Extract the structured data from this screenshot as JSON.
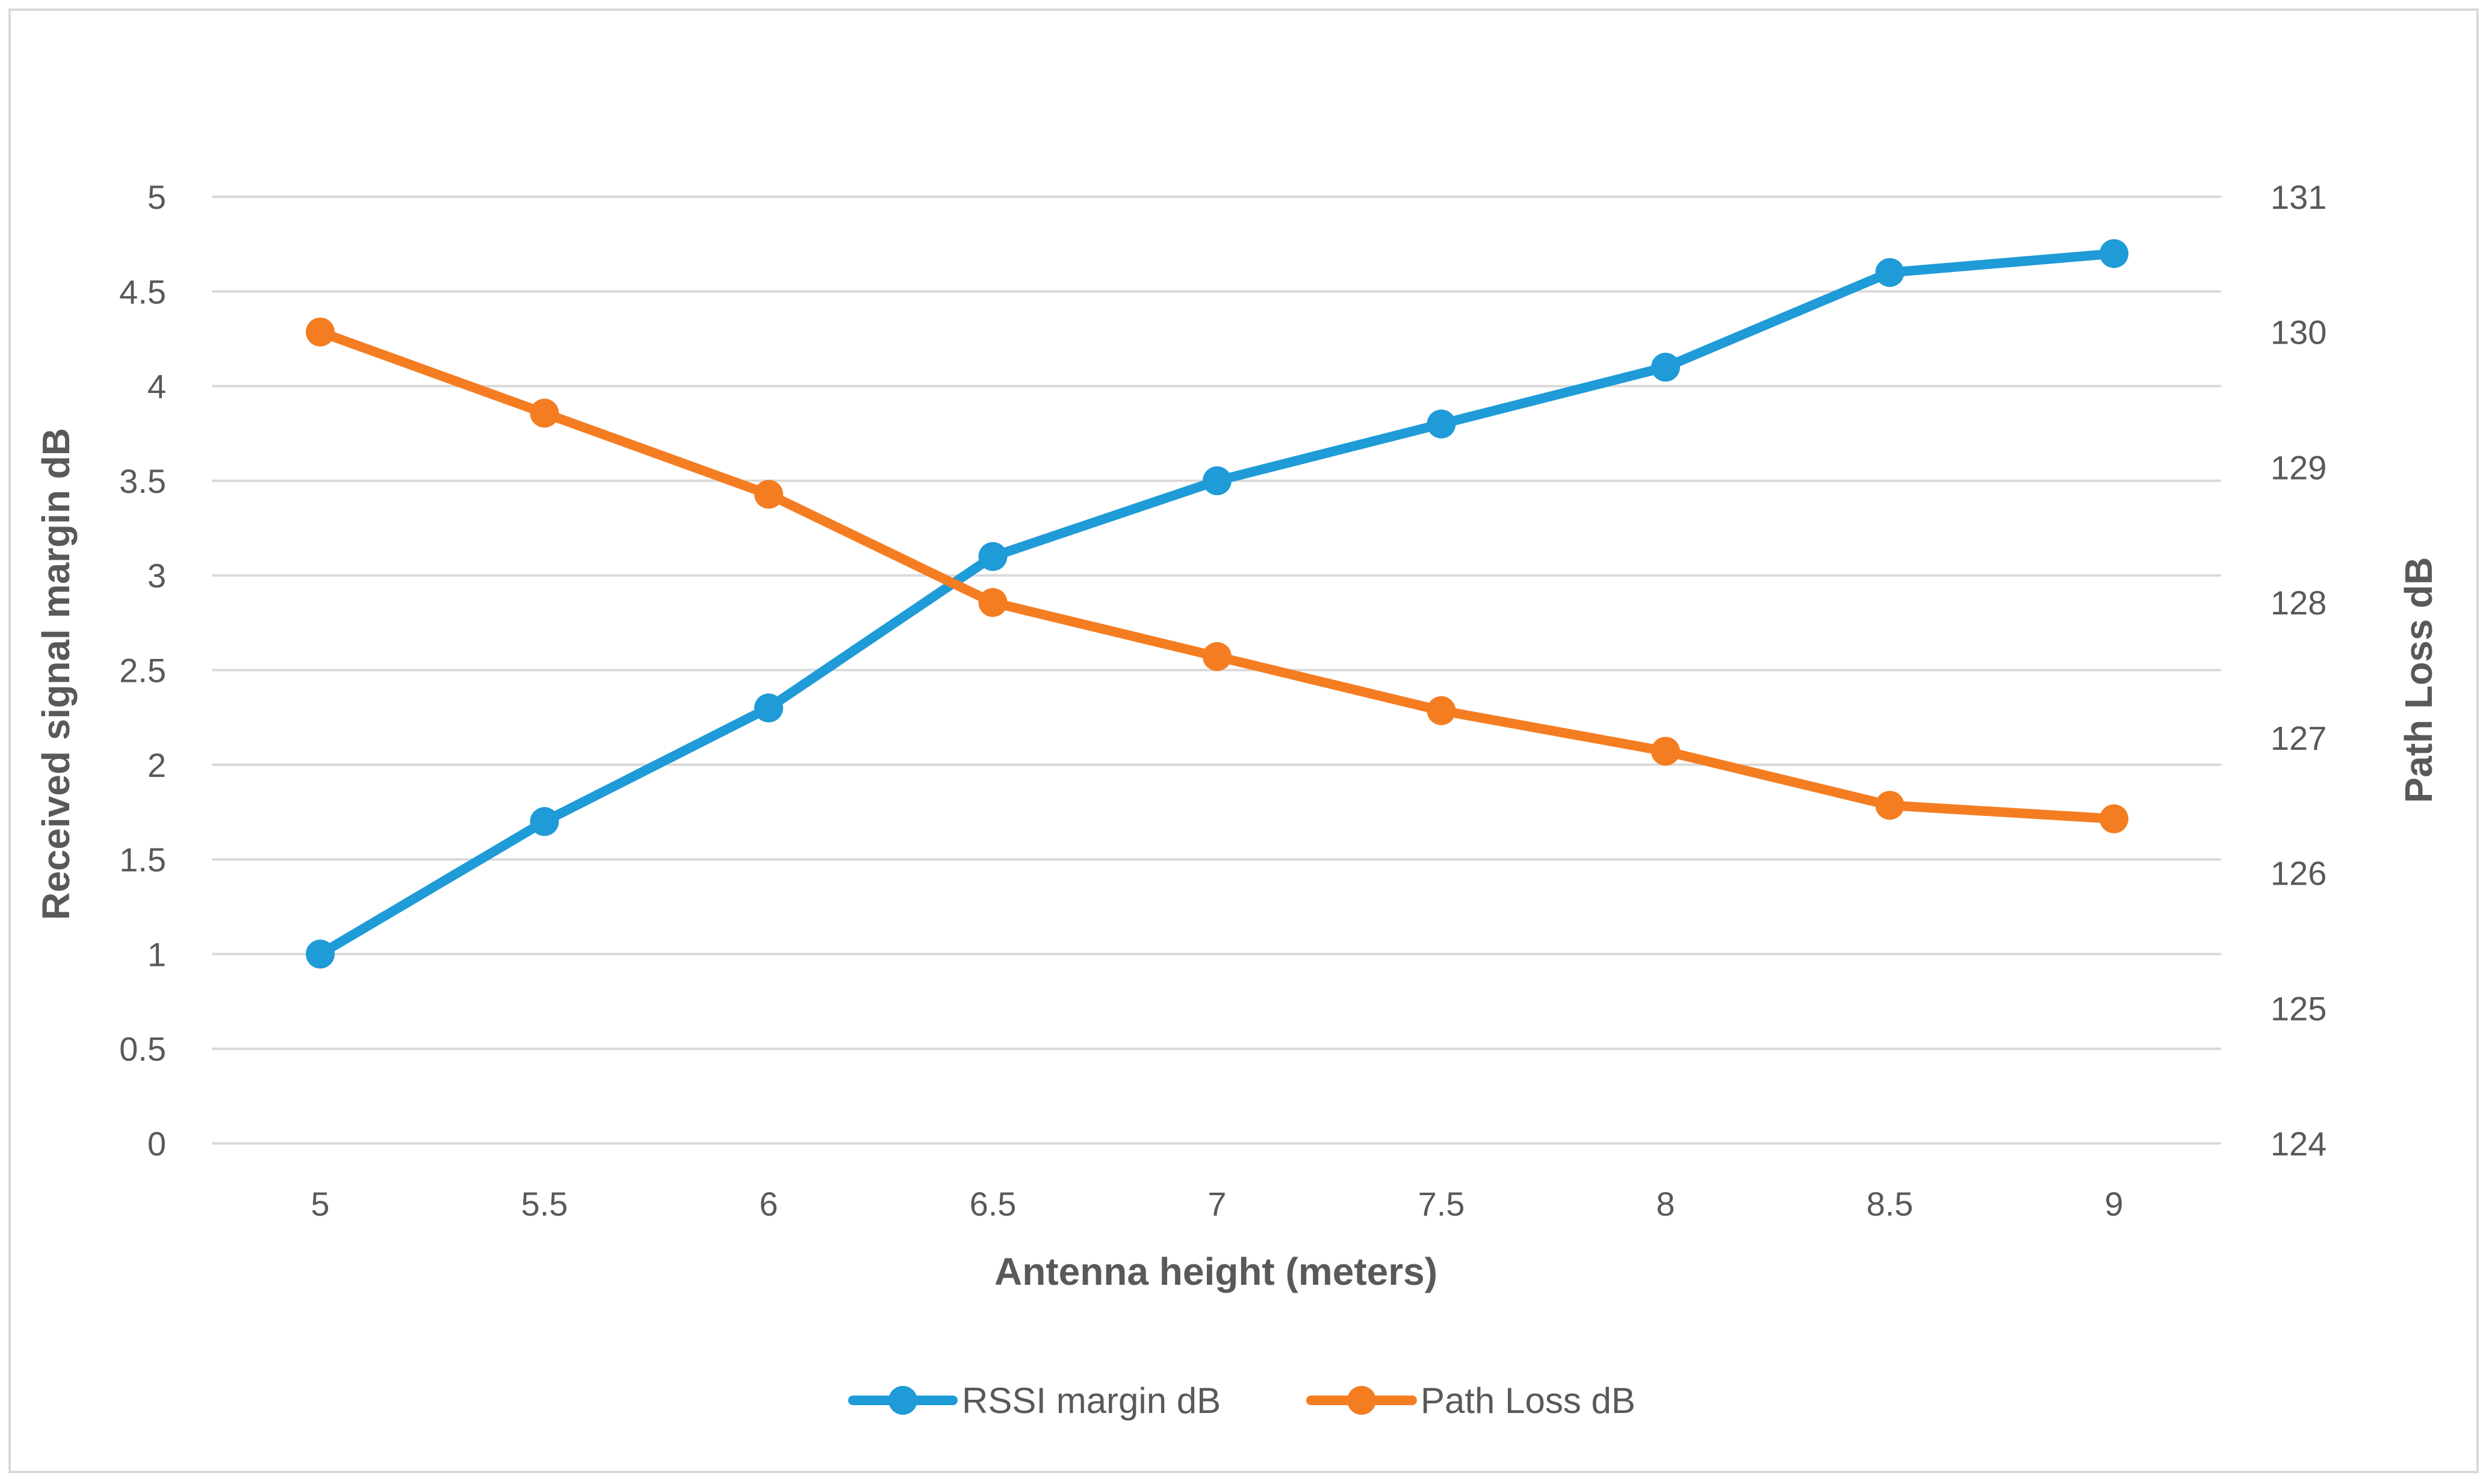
{
  "chart_data": {
    "type": "line",
    "title": "",
    "xlabel": "Antenna height (meters)",
    "ylabel_left": "Received signal margin dB",
    "ylabel_right": "Path Loss dB",
    "categories": [
      "5",
      "5.5",
      "6",
      "6.5",
      "7",
      "7.5",
      "8",
      "8.5",
      "9"
    ],
    "x": [
      5,
      5.5,
      6,
      6.5,
      7,
      7.5,
      8,
      8.5,
      9
    ],
    "ylim_left": [
      0,
      5
    ],
    "yticks_left": [
      "0",
      "0.5",
      "1",
      "1.5",
      "2",
      "2.5",
      "3",
      "3.5",
      "4",
      "4.5",
      "5"
    ],
    "ylim_right": [
      124,
      131
    ],
    "yticks_right": [
      "124",
      "125",
      "126",
      "127",
      "128",
      "129",
      "130",
      "131"
    ],
    "grid": true,
    "legend_position": "bottom",
    "series": [
      {
        "name": "RSSI margin dB",
        "axis": "left",
        "color": "#1f9bd7",
        "values": [
          1.0,
          1.7,
          2.3,
          3.1,
          3.5,
          3.8,
          4.1,
          4.6,
          4.7
        ]
      },
      {
        "name": "Path Loss dB",
        "axis": "right",
        "color": "#f47d22",
        "values": [
          130.0,
          129.4,
          128.8,
          128.0,
          127.6,
          127.2,
          126.9,
          126.5,
          126.4
        ]
      }
    ]
  }
}
